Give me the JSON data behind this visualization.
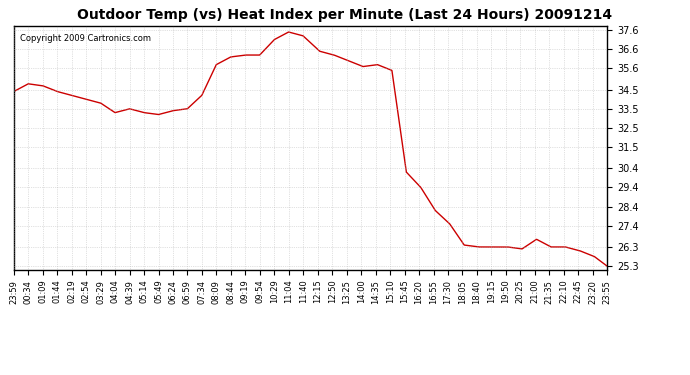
{
  "title": "Outdoor Temp (vs) Heat Index per Minute (Last 24 Hours) 20091214",
  "copyright": "Copyright 2009 Cartronics.com",
  "line_color": "#cc0000",
  "background_color": "#ffffff",
  "grid_color": "#aaaaaa",
  "yticks": [
    25.3,
    26.3,
    27.4,
    28.4,
    29.4,
    30.4,
    31.5,
    32.5,
    33.5,
    34.5,
    35.6,
    36.6,
    37.6
  ],
  "ymin": 25.1,
  "ymax": 37.8,
  "xtick_labels": [
    "23:59",
    "00:34",
    "01:09",
    "01:44",
    "02:19",
    "02:54",
    "03:29",
    "04:04",
    "04:39",
    "05:14",
    "05:49",
    "06:24",
    "06:59",
    "07:34",
    "08:09",
    "08:44",
    "09:19",
    "09:54",
    "10:29",
    "11:04",
    "11:40",
    "12:15",
    "12:50",
    "13:25",
    "14:00",
    "14:35",
    "15:10",
    "15:45",
    "16:20",
    "16:55",
    "17:30",
    "18:05",
    "18:40",
    "19:15",
    "19:50",
    "20:25",
    "21:00",
    "21:35",
    "22:10",
    "22:45",
    "23:20",
    "23:55"
  ],
  "x_values": [
    0,
    35,
    70,
    105,
    140,
    175,
    210,
    245,
    280,
    315,
    350,
    385,
    420,
    455,
    490,
    525,
    560,
    595,
    630,
    665,
    700,
    740,
    775,
    810,
    845,
    880,
    915,
    950,
    985,
    1020,
    1055,
    1090,
    1125,
    1160,
    1195,
    1230,
    1265,
    1300,
    1335,
    1370,
    1405,
    1436
  ],
  "y_values": [
    34.4,
    34.8,
    34.7,
    34.4,
    34.2,
    34.0,
    33.8,
    33.3,
    33.5,
    33.3,
    33.2,
    33.4,
    33.5,
    34.2,
    35.8,
    36.2,
    36.3,
    36.3,
    37.1,
    37.5,
    37.3,
    36.5,
    36.3,
    36.0,
    35.7,
    35.8,
    35.5,
    30.2,
    29.4,
    28.2,
    27.5,
    26.4,
    26.3,
    26.3,
    26.3,
    26.2,
    26.7,
    26.3,
    26.3,
    26.1,
    25.8,
    25.3
  ]
}
